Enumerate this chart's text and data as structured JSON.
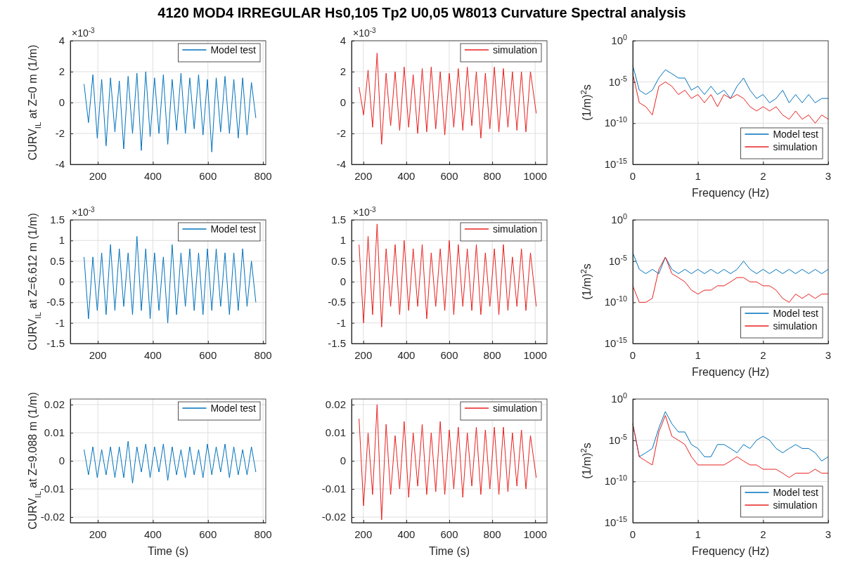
{
  "chart_data": [
    {
      "type": "line",
      "title": "4120 MOD4 IRREGULAR  Hs0,105 Tp2 U0,05 W8013 Curvature Spectral analysis",
      "ylabel": "CURV$_{IL}$ at Z=0 m (1/m)",
      "annotations": [
        "×10$^{-3}$"
      ],
      "xlim": [
        100,
        810
      ],
      "xticks": [
        200,
        400,
        600,
        800
      ],
      "ylim": [
        -4,
        4
      ],
      "yticks": [
        -4,
        -2,
        0,
        2,
        4
      ],
      "grid": true,
      "legend": "top right",
      "line_style": "solid",
      "series": [
        {
          "name": "Model test",
          "color": "#0072bd",
          "x": [
            150,
            166,
            182,
            198,
            214,
            230,
            246,
            262,
            278,
            294,
            310,
            326,
            342,
            358,
            374,
            390,
            406,
            422,
            438,
            454,
            470,
            486,
            502,
            518,
            534,
            550,
            566,
            582,
            598,
            614,
            630,
            646,
            662,
            678,
            694,
            710,
            726,
            742,
            758,
            774
          ],
          "values": [
            1.2,
            -1.3,
            1.8,
            -2.3,
            1.5,
            -2.8,
            1.6,
            -1.9,
            1.4,
            -3.0,
            1.7,
            -2.0,
            1.9,
            -3.1,
            2.0,
            -2.2,
            1.6,
            -2.0,
            1.8,
            -2.7,
            1.5,
            -1.8,
            1.9,
            -2.0,
            1.6,
            -1.7,
            1.8,
            -2.1,
            1.5,
            -3.2,
            1.6,
            -1.9,
            1.7,
            -2.0,
            1.5,
            -2.3,
            1.6,
            -2.1,
            1.3,
            -1.0
          ]
        }
      ]
    },
    {
      "type": "line",
      "annotations": [
        "×10$^{-3}$"
      ],
      "xlim": [
        145,
        1055
      ],
      "xticks": [
        200,
        400,
        600,
        800,
        1000
      ],
      "ylim": [
        -4,
        4
      ],
      "yticks": [
        -4,
        -2,
        0,
        2,
        4
      ],
      "grid": true,
      "legend": "top right",
      "line_style": "solid",
      "series": [
        {
          "name": "simulation",
          "color": "#e8211f",
          "x": [
            180,
            201,
            222,
            243,
            264,
            285,
            306,
            327,
            348,
            369,
            390,
            411,
            432,
            453,
            474,
            495,
            516,
            537,
            558,
            579,
            600,
            621,
            642,
            663,
            684,
            705,
            726,
            747,
            768,
            789,
            810,
            831,
            852,
            873,
            894,
            915,
            936,
            957,
            978,
            1005
          ],
          "values": [
            1.0,
            -0.8,
            2.1,
            -1.6,
            3.2,
            -2.7,
            1.9,
            -1.5,
            2.0,
            -1.8,
            2.3,
            -1.6,
            1.8,
            -2.0,
            2.2,
            -1.9,
            2.3,
            -1.7,
            2.0,
            -2.1,
            1.9,
            -1.6,
            2.2,
            -1.8,
            2.3,
            -1.5,
            2.0,
            -2.3,
            1.9,
            -1.7,
            2.3,
            -1.9,
            2.2,
            -1.6,
            2.0,
            -1.8,
            2.0,
            -1.9,
            2.0,
            -0.7
          ]
        }
      ]
    },
    {
      "type": "line",
      "ylabel": "(1/m)$^{2}$s",
      "xlabel": "Frequency (Hz)",
      "log": true,
      "xlim": [
        0,
        3
      ],
      "xticks": [
        0,
        1,
        2,
        3
      ],
      "ylim": [
        1e-15,
        1
      ],
      "yticks": [
        {
          "value": 1e-15,
          "label": "10$^{-15}$"
        },
        {
          "value": 1e-10,
          "label": "10$^{-10}$"
        },
        {
          "value": 1e-05,
          "label": "10$^{-5}$"
        },
        {
          "value": 1,
          "label": "10$^{0}$"
        }
      ],
      "grid": true,
      "legend": "bottom right",
      "line_style": "solid",
      "series": [
        {
          "name": "Model test",
          "color": "#0072bd",
          "x": [
            0,
            0.1,
            0.2,
            0.3,
            0.4,
            0.5,
            0.6,
            0.7,
            0.8,
            0.9,
            1.0,
            1.1,
            1.2,
            1.3,
            1.4,
            1.5,
            1.6,
            1.7,
            1.8,
            1.9,
            2.0,
            2.1,
            2.2,
            2.3,
            2.4,
            2.5,
            2.6,
            2.7,
            2.8,
            2.9,
            3.0
          ],
          "values": [
            0.001,
            1e-06,
            3e-07,
            1e-06,
            3e-05,
            0.0003,
            0.0001,
            3e-05,
            3e-05,
            1e-06,
            3e-06,
            3e-07,
            3e-06,
            3e-07,
            1e-06,
            1e-07,
            3e-06,
            3e-05,
            1e-06,
            1e-07,
            3e-07,
            3e-08,
            1e-07,
            1e-06,
            3e-08,
            3e-07,
            3e-08,
            3e-07,
            3e-08,
            1e-07,
            1e-07
          ]
        },
        {
          "name": "simulation",
          "color": "#e8211f",
          "x": [
            0,
            0.1,
            0.2,
            0.3,
            0.4,
            0.5,
            0.6,
            0.7,
            0.8,
            0.9,
            1.0,
            1.1,
            1.2,
            1.3,
            1.4,
            1.5,
            1.6,
            1.7,
            1.8,
            1.9,
            2.0,
            2.1,
            2.2,
            2.3,
            2.4,
            2.5,
            2.6,
            2.7,
            2.8,
            2.9,
            3.0
          ],
          "values": [
            0.0001,
            3e-08,
            1e-08,
            1e-09,
            3e-06,
            1e-05,
            3e-06,
            3e-07,
            1e-06,
            1e-07,
            3e-07,
            3e-08,
            3e-07,
            1e-08,
            3e-07,
            1e-07,
            3e-07,
            1e-07,
            1e-08,
            3e-09,
            1e-08,
            3e-09,
            1e-08,
            1e-09,
            3e-10,
            3e-09,
            3e-10,
            1e-09,
            1e-10,
            1e-09,
            3e-10
          ]
        }
      ]
    },
    {
      "type": "line",
      "ylabel": "CURV$_{IL}$ at Z=6.612 m (1/m)",
      "annotations": [
        "×10$^{-3}$"
      ],
      "xlim": [
        100,
        810
      ],
      "xticks": [
        200,
        400,
        600,
        800
      ],
      "ylim": [
        -1.5,
        1.5
      ],
      "yticks": [
        -1.5,
        -1,
        -0.5,
        0,
        0.5,
        1,
        1.5
      ],
      "grid": true,
      "legend": "top right",
      "line_style": "solid",
      "series": [
        {
          "name": "Model test",
          "color": "#0072bd",
          "x": [
            150,
            166,
            182,
            198,
            214,
            230,
            246,
            262,
            278,
            294,
            310,
            326,
            342,
            358,
            374,
            390,
            406,
            422,
            438,
            454,
            470,
            486,
            502,
            518,
            534,
            550,
            566,
            582,
            598,
            614,
            630,
            646,
            662,
            678,
            694,
            710,
            726,
            742,
            758,
            774
          ],
          "values": [
            0.6,
            -0.9,
            0.6,
            -0.7,
            0.7,
            -0.8,
            0.9,
            -0.7,
            0.8,
            -0.6,
            0.7,
            -0.8,
            1.1,
            -0.7,
            0.8,
            -0.9,
            0.7,
            -0.7,
            0.6,
            -1.0,
            0.9,
            -0.8,
            0.7,
            -0.6,
            0.8,
            -0.7,
            0.7,
            -0.8,
            0.8,
            -0.7,
            0.8,
            -0.6,
            0.7,
            -0.8,
            0.7,
            -0.7,
            0.8,
            -0.6,
            0.5,
            -0.5
          ]
        }
      ]
    },
    {
      "type": "line",
      "annotations": [
        "×10$^{-3}$"
      ],
      "xlim": [
        145,
        1055
      ],
      "xticks": [
        200,
        400,
        600,
        800,
        1000
      ],
      "ylim": [
        -1.5,
        1.5
      ],
      "yticks": [
        -1.5,
        -1,
        -0.5,
        0,
        0.5,
        1,
        1.5
      ],
      "grid": true,
      "legend": "top right",
      "line_style": "solid",
      "series": [
        {
          "name": "simulation",
          "color": "#e8211f",
          "x": [
            180,
            201,
            222,
            243,
            264,
            285,
            306,
            327,
            348,
            369,
            390,
            411,
            432,
            453,
            474,
            495,
            516,
            537,
            558,
            579,
            600,
            621,
            642,
            663,
            684,
            705,
            726,
            747,
            768,
            789,
            810,
            831,
            852,
            873,
            894,
            915,
            936,
            957,
            978,
            1005
          ],
          "values": [
            0.9,
            -1.0,
            1.1,
            -0.8,
            1.4,
            -1.1,
            0.8,
            -0.6,
            0.9,
            -0.8,
            1.0,
            -0.7,
            0.8,
            -0.6,
            0.9,
            -0.9,
            0.7,
            -0.6,
            0.8,
            -0.7,
            1.0,
            -0.8,
            0.9,
            -0.6,
            0.8,
            -0.7,
            0.9,
            -0.8,
            0.7,
            -0.6,
            0.8,
            -0.8,
            0.9,
            -0.7,
            0.6,
            -0.6,
            0.8,
            -0.7,
            0.7,
            -0.6
          ]
        }
      ]
    },
    {
      "type": "line",
      "ylabel": "(1/m)$^{2}$s",
      "xlabel": "Frequency (Hz)",
      "log": true,
      "xlim": [
        0,
        3
      ],
      "xticks": [
        0,
        1,
        2,
        3
      ],
      "ylim": [
        1e-15,
        1
      ],
      "yticks": [
        {
          "value": 1e-15,
          "label": "10$^{-15}$"
        },
        {
          "value": 1e-10,
          "label": "10$^{-10}$"
        },
        {
          "value": 1e-05,
          "label": "10$^{-5}$"
        },
        {
          "value": 1,
          "label": "10$^{0}$"
        }
      ],
      "grid": true,
      "legend": "bottom right",
      "line_style": "solid",
      "series": [
        {
          "name": "Model test",
          "color": "#0072bd",
          "x": [
            0,
            0.1,
            0.2,
            0.3,
            0.4,
            0.5,
            0.6,
            0.7,
            0.8,
            0.9,
            1.0,
            1.1,
            1.2,
            1.3,
            1.4,
            1.5,
            1.6,
            1.7,
            1.8,
            1.9,
            2.0,
            2.1,
            2.2,
            2.3,
            2.4,
            2.5,
            2.6,
            2.7,
            2.8,
            2.9,
            3.0
          ],
          "values": [
            0.0001,
            1e-06,
            3e-07,
            1e-06,
            3e-07,
            3e-05,
            1e-06,
            3e-07,
            1e-06,
            3e-07,
            1e-06,
            3e-07,
            1e-06,
            3e-07,
            1e-06,
            3e-07,
            1e-06,
            1e-05,
            1e-06,
            3e-07,
            1e-06,
            3e-07,
            1e-06,
            3e-07,
            1e-06,
            3e-07,
            1e-06,
            3e-07,
            1e-06,
            3e-07,
            1e-06
          ]
        },
        {
          "name": "simulation",
          "color": "#e8211f",
          "x": [
            0,
            0.1,
            0.2,
            0.3,
            0.4,
            0.5,
            0.6,
            0.7,
            0.8,
            0.9,
            1.0,
            1.1,
            1.2,
            1.3,
            1.4,
            1.5,
            1.6,
            1.7,
            1.8,
            1.9,
            2.0,
            2.1,
            2.2,
            2.3,
            2.4,
            2.5,
            2.6,
            2.7,
            2.8,
            2.9,
            3.0
          ],
          "values": [
            1e-08,
            1e-10,
            1e-10,
            3e-10,
            1e-06,
            3e-05,
            3e-07,
            1e-07,
            3e-08,
            3e-09,
            1e-09,
            3e-09,
            3e-09,
            1e-08,
            1e-08,
            3e-08,
            1e-07,
            1e-07,
            3e-08,
            3e-08,
            1e-08,
            1e-08,
            3e-09,
            3e-10,
            1e-10,
            1e-09,
            3e-10,
            1e-09,
            3e-10,
            1e-09,
            1e-09
          ]
        }
      ]
    },
    {
      "type": "line",
      "ylabel": "CURV$_{IL}$ at Z=9.088 m (1/m)",
      "xlabel": "Time (s)",
      "xlim": [
        100,
        810
      ],
      "xticks": [
        200,
        400,
        600,
        800
      ],
      "ylim": [
        -0.022,
        0.022
      ],
      "yticks": [
        -0.02,
        -0.01,
        0,
        0.01,
        0.02
      ],
      "grid": true,
      "legend": "top right",
      "line_style": "solid",
      "series": [
        {
          "name": "Model test",
          "color": "#0072bd",
          "x": [
            150,
            166,
            182,
            198,
            214,
            230,
            246,
            262,
            278,
            294,
            310,
            326,
            342,
            358,
            374,
            390,
            406,
            422,
            438,
            454,
            470,
            486,
            502,
            518,
            534,
            550,
            566,
            582,
            598,
            614,
            630,
            646,
            662,
            678,
            694,
            710,
            726,
            742,
            758,
            774
          ],
          "values": [
            0.004,
            -0.005,
            0.005,
            -0.006,
            0.004,
            -0.005,
            0.005,
            -0.006,
            0.005,
            -0.006,
            0.007,
            -0.008,
            0.005,
            -0.004,
            0.006,
            -0.006,
            0.005,
            -0.004,
            0.006,
            -0.007,
            0.005,
            -0.005,
            0.004,
            -0.006,
            0.005,
            -0.005,
            0.004,
            -0.006,
            0.006,
            -0.005,
            0.005,
            -0.004,
            0.006,
            -0.006,
            0.005,
            -0.005,
            0.004,
            -0.005,
            0.005,
            -0.004
          ]
        }
      ]
    },
    {
      "type": "line",
      "xlabel": "Time (s)",
      "xlim": [
        145,
        1055
      ],
      "xticks": [
        200,
        400,
        600,
        800,
        1000
      ],
      "ylim": [
        -0.022,
        0.022
      ],
      "yticks": [
        -0.02,
        -0.01,
        0,
        0.01,
        0.02
      ],
      "grid": true,
      "legend": "top right",
      "line_style": "solid",
      "series": [
        {
          "name": "simulation",
          "color": "#e8211f",
          "x": [
            180,
            201,
            222,
            243,
            264,
            285,
            306,
            327,
            348,
            369,
            390,
            411,
            432,
            453,
            474,
            495,
            516,
            537,
            558,
            579,
            600,
            621,
            642,
            663,
            684,
            705,
            726,
            747,
            768,
            789,
            810,
            831,
            852,
            873,
            894,
            915,
            936,
            957,
            978,
            1005
          ],
          "values": [
            0.015,
            -0.016,
            0.01,
            -0.012,
            0.02,
            -0.021,
            0.013,
            -0.012,
            0.009,
            -0.01,
            0.014,
            -0.013,
            0.01,
            -0.009,
            0.013,
            -0.012,
            0.01,
            -0.011,
            0.014,
            -0.012,
            0.011,
            -0.01,
            0.012,
            -0.013,
            0.01,
            -0.009,
            0.012,
            -0.012,
            0.011,
            -0.01,
            0.012,
            -0.012,
            0.012,
            -0.011,
            0.01,
            -0.009,
            0.011,
            -0.01,
            0.009,
            -0.006
          ]
        }
      ]
    },
    {
      "type": "line",
      "ylabel": "(1/m)$^{2}$s",
      "xlabel": "Frequency (Hz)",
      "log": true,
      "xlim": [
        0,
        3
      ],
      "xticks": [
        0,
        1,
        2,
        3
      ],
      "ylim": [
        1e-15,
        1
      ],
      "yticks": [
        {
          "value": 1e-15,
          "label": "10$^{-15}$"
        },
        {
          "value": 1e-10,
          "label": "10$^{-10}$"
        },
        {
          "value": 1e-05,
          "label": "10$^{-5}$"
        },
        {
          "value": 1,
          "label": "10$^{0}$"
        }
      ],
      "grid": true,
      "legend": "bottom right",
      "line_style": "solid",
      "series": [
        {
          "name": "Model test",
          "color": "#0072bd",
          "x": [
            0,
            0.1,
            0.2,
            0.3,
            0.4,
            0.5,
            0.6,
            0.7,
            0.8,
            0.9,
            1.0,
            1.1,
            1.2,
            1.3,
            1.4,
            1.5,
            1.6,
            1.7,
            1.8,
            1.9,
            2.0,
            2.1,
            2.2,
            2.3,
            2.4,
            2.5,
            2.6,
            2.7,
            2.8,
            2.9,
            3.0
          ],
          "values": [
            0.001,
            1e-07,
            3e-07,
            1e-06,
            0.0003,
            0.03,
            0.001,
            0.0001,
            0.0001,
            3e-06,
            1e-06,
            1e-07,
            1e-07,
            3e-06,
            3e-06,
            1e-06,
            3e-07,
            3e-06,
            1e-06,
            1e-05,
            3e-05,
            1e-05,
            1e-06,
            3e-07,
            1e-06,
            3e-06,
            1e-06,
            1e-06,
            3e-07,
            3e-08,
            1e-07
          ]
        },
        {
          "name": "simulation",
          "color": "#e8211f",
          "x": [
            0,
            0.1,
            0.2,
            0.3,
            0.4,
            0.5,
            0.6,
            0.7,
            0.8,
            0.9,
            1.0,
            1.1,
            1.2,
            1.3,
            1.4,
            1.5,
            1.6,
            1.7,
            1.8,
            1.9,
            2.0,
            2.1,
            2.2,
            2.3,
            2.4,
            2.5,
            2.6,
            2.7,
            2.8,
            2.9,
            3.0
          ],
          "values": [
            0.001,
            1e-07,
            3e-08,
            1e-08,
            0.0001,
            0.01,
            3e-05,
            1e-05,
            3e-06,
            1e-07,
            1e-08,
            1e-08,
            1e-08,
            1e-08,
            1e-08,
            3e-08,
            1e-07,
            3e-08,
            1e-08,
            1e-08,
            3e-09,
            3e-09,
            3e-09,
            1e-09,
            3e-10,
            1e-09,
            1e-09,
            1e-09,
            3e-09,
            1e-09,
            1e-09
          ]
        }
      ]
    }
  ]
}
